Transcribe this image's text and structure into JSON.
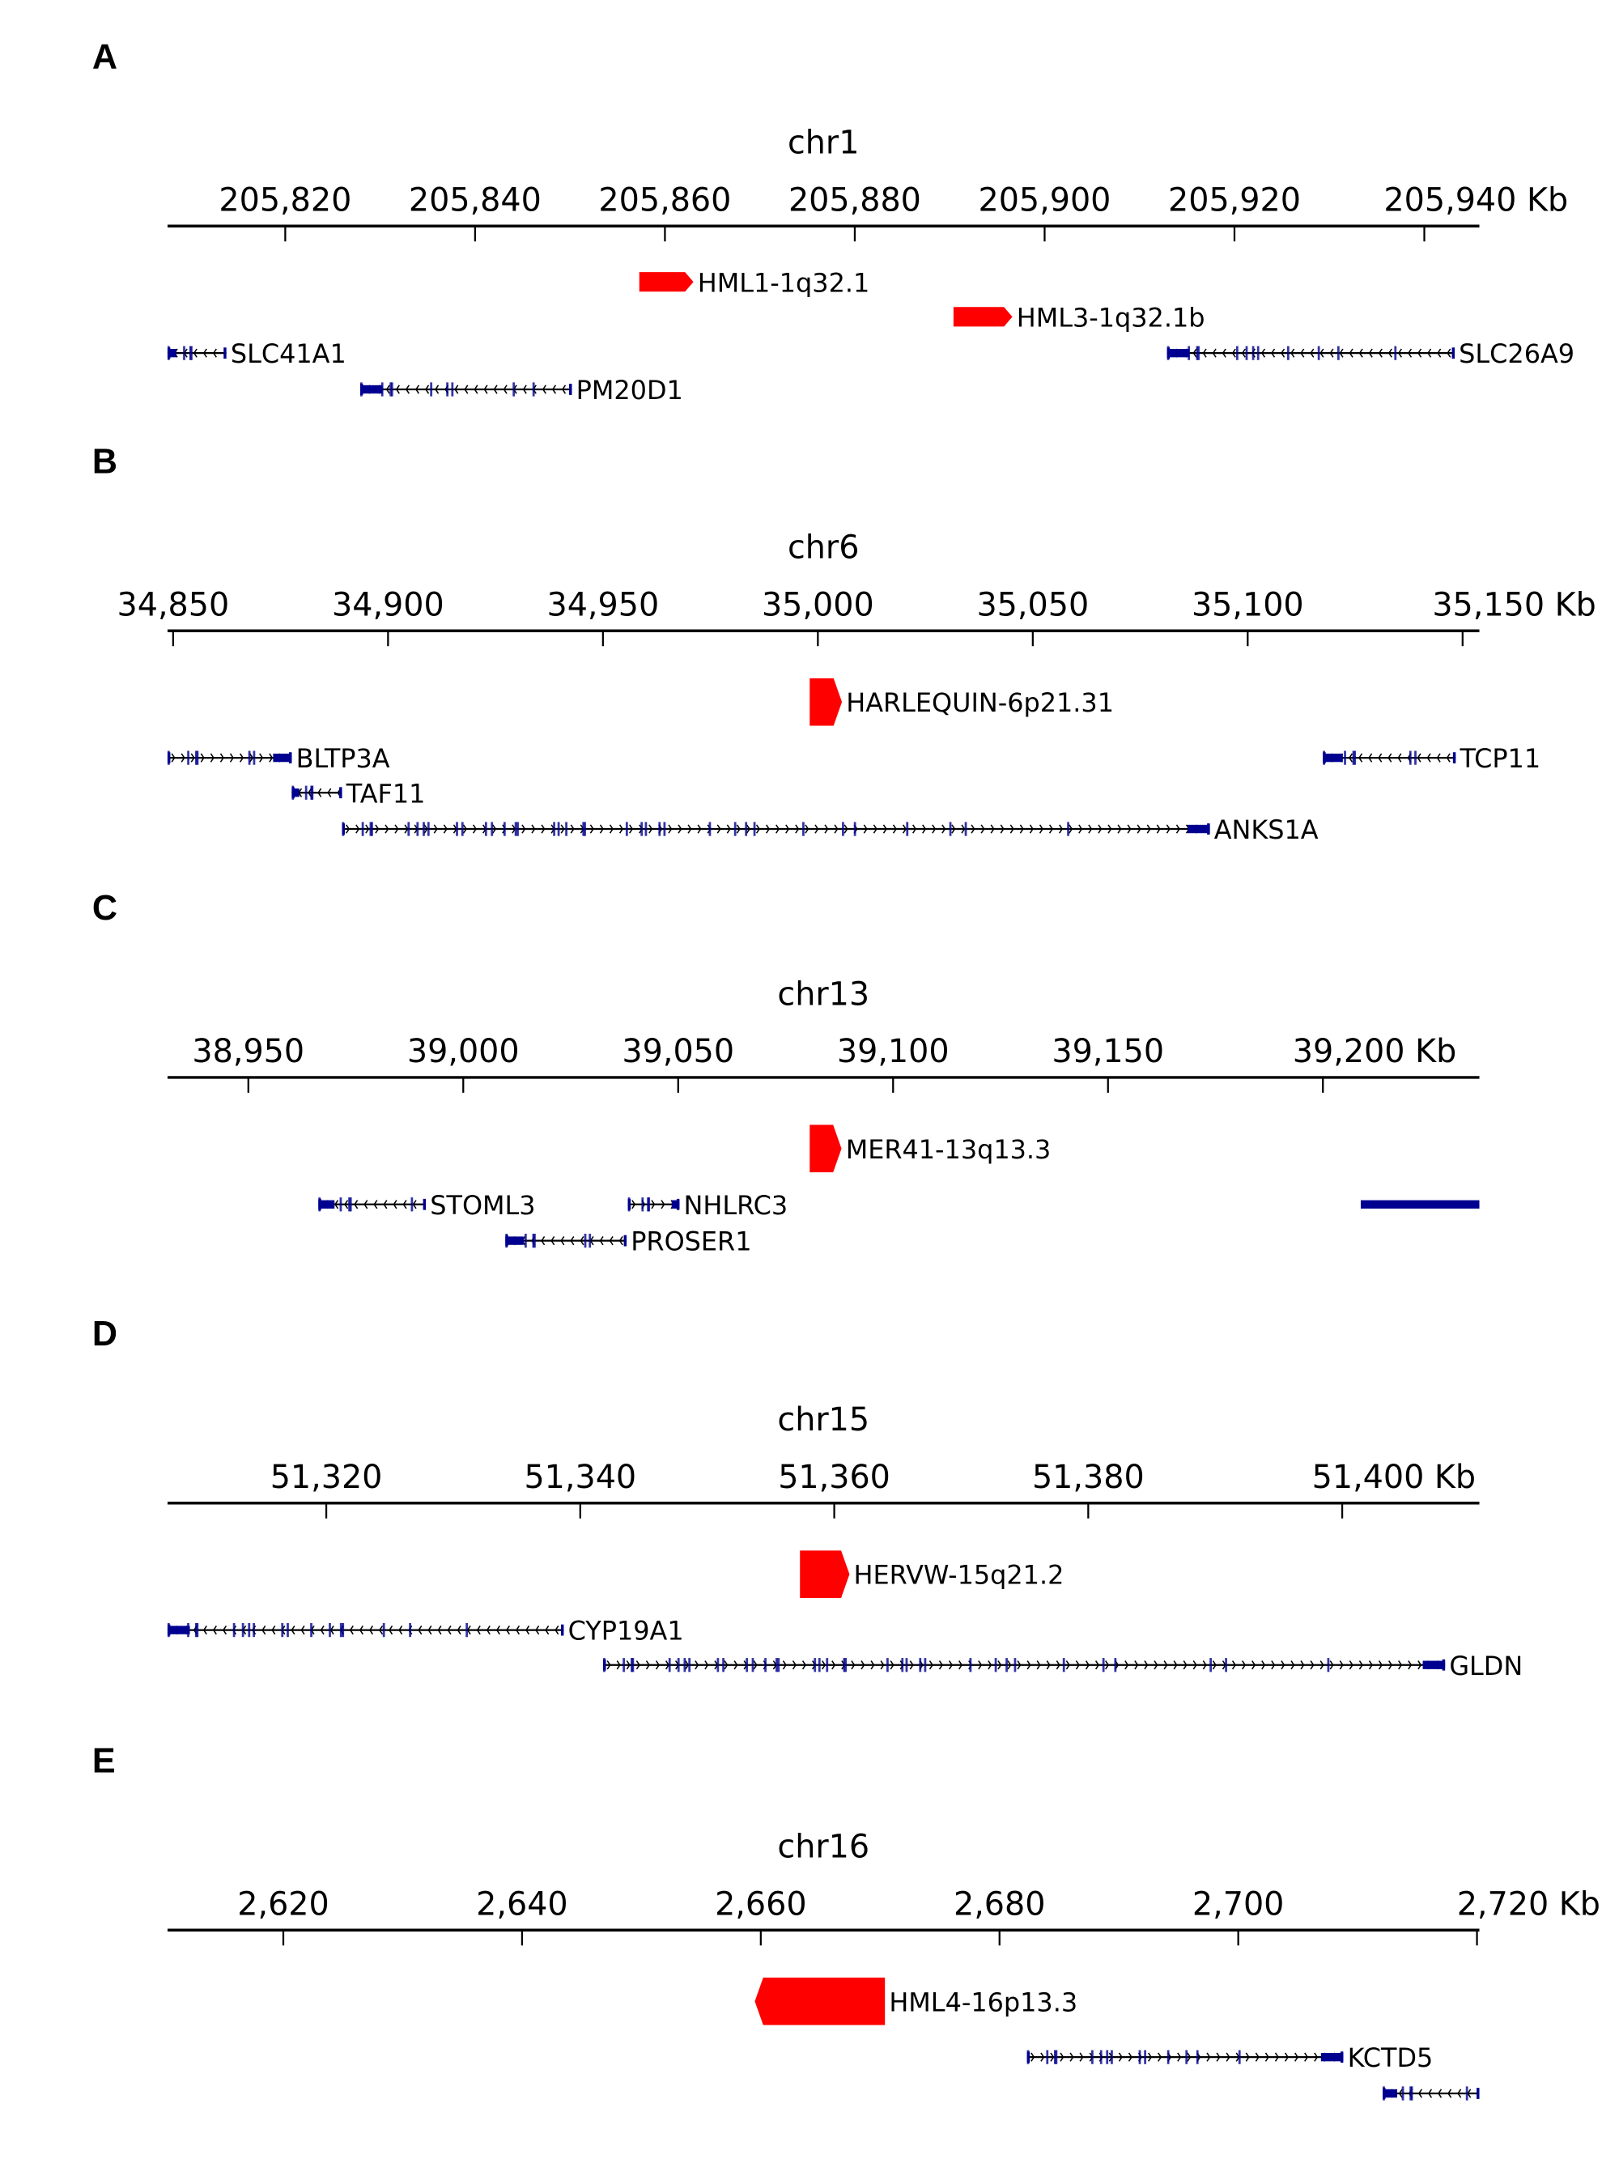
{
  "colors": {
    "repeat": "#ff0000",
    "gene": "#000090",
    "intron": "#000000",
    "axis": "#000000"
  },
  "panels": [
    {
      "letter": "A",
      "chrom": "chr1",
      "range_kb": [
        205807.6,
        205945.8
      ],
      "ticks": [
        205820,
        205840,
        205860,
        205880,
        205900,
        205920,
        205940
      ],
      "tick_labels": [
        "205,820",
        "205,840",
        "205,860",
        "205,880",
        "205,900",
        "205,920",
        "205,940 Kb"
      ],
      "features": [
        {
          "label": "HML1-1q32.1",
          "type": "repeat",
          "start": 205857.3,
          "end": 205863.0,
          "strand": "+"
        },
        {
          "label": "HML3-1q32.1b",
          "type": "repeat",
          "start": 205890.4,
          "end": 205896.6,
          "strand": "+"
        },
        {
          "label": "SLC41A1",
          "type": "gene",
          "start": 205807.6,
          "end": 205813.8,
          "strand": "-"
        },
        {
          "label": "PM20D1",
          "type": "gene",
          "start": 205827.9,
          "end": 205850.2,
          "strand": "-"
        },
        {
          "label": "SLC26A9",
          "type": "gene",
          "start": 205912.9,
          "end": 205943.2,
          "strand": "-"
        }
      ]
    },
    {
      "letter": "B",
      "chrom": "chr6",
      "range_kb": [
        34848.7,
        35153.9
      ],
      "ticks": [
        34850,
        34900,
        34950,
        35000,
        35050,
        35100,
        35150
      ],
      "tick_labels": [
        "34,850",
        "34,900",
        "34,950",
        "35,000",
        "35,050",
        "35,100",
        "35,150 Kb"
      ],
      "features": [
        {
          "label": "HARLEQUIN-6p21.31",
          "type": "repeat",
          "start": 34998.1,
          "end": 35005.6,
          "strand": "+"
        },
        {
          "label": "BLTP3A",
          "type": "gene",
          "start": 34848.7,
          "end": 34877.6,
          "strand": "+"
        },
        {
          "label": "TAF11",
          "type": "gene",
          "start": 34877.6,
          "end": 34889.3,
          "strand": "-"
        },
        {
          "label": "ANKS1A",
          "type": "gene",
          "start": 34889.3,
          "end": 35091.2,
          "strand": "+"
        },
        {
          "label": "TCP11",
          "type": "gene",
          "start": 35117.5,
          "end": 35148.4,
          "strand": "-"
        }
      ]
    },
    {
      "letter": "C",
      "chrom": "chr13",
      "range_kb": [
        38931.2,
        39236.4
      ],
      "ticks": [
        38950,
        39000,
        39050,
        39100,
        39150,
        39200
      ],
      "tick_labels": [
        "38,950",
        "39,000",
        "39,050",
        "39,100",
        "39,150",
        "39,200 Kb"
      ],
      "features": [
        {
          "label": "MER41-13q13.3",
          "type": "repeat",
          "start": 39080.6,
          "end": 39088.0,
          "strand": "+"
        },
        {
          "label": "STOML3",
          "type": "gene",
          "start": 38966.3,
          "end": 38991.3,
          "strand": "-"
        },
        {
          "label": "NHLRC3",
          "type": "gene",
          "start": 39038.3,
          "end": 39050.3,
          "strand": "+"
        },
        {
          "label": "PROSER1",
          "type": "gene",
          "start": 39009.8,
          "end": 39038.0,
          "strand": "-"
        },
        {
          "label": "",
          "type": "block",
          "start": 39208.8,
          "end": 39236.4,
          "strand": ""
        }
      ]
    },
    {
      "letter": "D",
      "chrom": "chr15",
      "range_kb": [
        51307.5,
        51410.8
      ],
      "ticks": [
        51320,
        51340,
        51360,
        51380,
        51400
      ],
      "tick_labels": [
        "51,320",
        "51,340",
        "51,360",
        "51,380",
        "51,400 Kb"
      ],
      "features": [
        {
          "label": "HERVW-15q21.2",
          "type": "repeat",
          "start": 51357.3,
          "end": 51361.2,
          "strand": "+"
        },
        {
          "label": "CYP19A1",
          "type": "gene",
          "start": 51307.5,
          "end": 51338.7,
          "strand": "-"
        },
        {
          "label": "GLDN",
          "type": "gene",
          "start": 51341.8,
          "end": 51408.1,
          "strand": "+"
        }
      ]
    },
    {
      "letter": "E",
      "chrom": "chr16",
      "range_kb": [
        2610.3,
        2720.2
      ],
      "ticks": [
        2620,
        2640,
        2660,
        2680,
        2700,
        2720
      ],
      "tick_labels": [
        "2,620",
        "2,640",
        "2,660",
        "2,680",
        "2,700",
        "2,720 Kb"
      ],
      "features": [
        {
          "label": "HML4-16p13.3",
          "type": "repeat",
          "start": 2659.5,
          "end": 2670.4,
          "strand": "-"
        },
        {
          "label": "KCTD5",
          "type": "gene",
          "start": 2682.3,
          "end": 2708.8,
          "strand": "+"
        },
        {
          "label": "",
          "type": "gene",
          "start": 2712.1,
          "end": 2720.2,
          "strand": "-"
        }
      ]
    }
  ]
}
